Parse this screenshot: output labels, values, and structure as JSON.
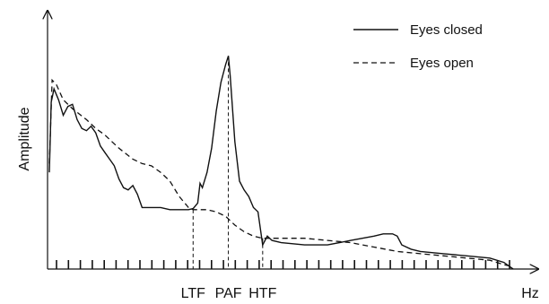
{
  "chart_data": {
    "type": "line",
    "title": "",
    "xlabel": "Hz",
    "ylabel": "Amplitude",
    "xlim": [
      0,
      100
    ],
    "ylim": [
      0,
      100
    ],
    "legend": {
      "placement": "top-right"
    },
    "grid": false,
    "markers": [
      {
        "label": "LTF",
        "x": 31,
        "y": 27
      },
      {
        "label": "PAF",
        "x": 38.6,
        "y": 97
      },
      {
        "label": "HTF",
        "x": 46,
        "y": 14
      }
    ],
    "tick_count": 39,
    "series": [
      {
        "name": "Eyes closed",
        "style": "solid",
        "x": [
          0,
          0.4,
          1,
          2,
          3,
          4,
          5,
          6,
          7,
          8,
          9,
          10,
          11,
          12,
          13,
          14,
          15,
          16,
          17,
          18,
          19,
          20,
          22,
          24,
          26,
          28,
          30,
          31,
          32,
          32.5,
          33,
          34,
          35,
          36,
          37,
          38,
          38.6,
          39,
          40,
          41,
          42,
          43,
          44,
          45,
          46,
          47,
          48,
          50,
          55,
          60,
          65,
          70,
          72,
          74,
          75,
          76,
          78,
          80,
          85,
          90,
          95,
          98,
          100
        ],
        "y": [
          44,
          76,
          82,
          77,
          70,
          74,
          75,
          68,
          64,
          63,
          65,
          62,
          56,
          53,
          50,
          47,
          41,
          37,
          36,
          38,
          34,
          28,
          28,
          28,
          27,
          27,
          27,
          27.5,
          30,
          39,
          37,
          44,
          55,
          72,
          85,
          93,
          97,
          88,
          58,
          40,
          36,
          33,
          28,
          26,
          11,
          15,
          13,
          12,
          11,
          11,
          13,
          15,
          16,
          16,
          15,
          11,
          9,
          8,
          7,
          6,
          5,
          3,
          0
        ]
      },
      {
        "name": "Eyes open",
        "style": "dashed",
        "x": [
          0,
          0.6,
          1.5,
          3,
          5,
          8,
          10,
          12,
          15,
          18,
          20,
          22,
          24,
          26,
          28,
          30,
          31,
          32,
          34,
          36,
          38,
          40,
          42,
          44,
          46,
          48,
          55,
          60,
          65,
          70,
          75,
          80,
          85,
          90,
          95,
          98,
          100
        ],
        "y": [
          48,
          86,
          84,
          77,
          73,
          68,
          64,
          61,
          55,
          50,
          48,
          47,
          44,
          40,
          33,
          28,
          27,
          27,
          27,
          26,
          24,
          20,
          17,
          15,
          14,
          14,
          14,
          13,
          12,
          10,
          8,
          7,
          6,
          5,
          4,
          2,
          1
        ]
      }
    ]
  }
}
